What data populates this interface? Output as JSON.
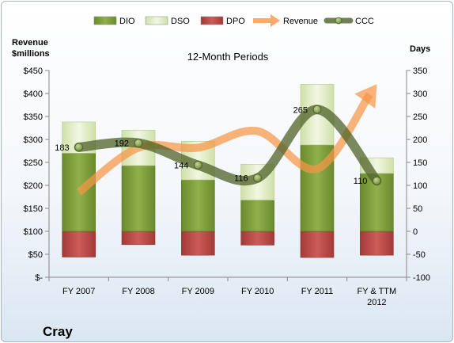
{
  "chart_data": {
    "type": "bar",
    "title": "12-Month Periods",
    "footer_title": "Cray",
    "ylabel_left": [
      "Revenue",
      "$millions"
    ],
    "ylabel_right": "Days",
    "categories": [
      [
        "FY 2007"
      ],
      [
        "FY 2008"
      ],
      [
        "FY 2009"
      ],
      [
        "FY 2010"
      ],
      [
        "FY 2011"
      ],
      [
        "FY & TTM",
        "2012"
      ]
    ],
    "left_axis": {
      "ylim": [
        0,
        450
      ],
      "ticks": [
        0,
        50,
        100,
        150,
        200,
        250,
        300,
        350,
        400,
        450
      ],
      "tick_labels": [
        "$-",
        "$50",
        "$100",
        "$150",
        "$200",
        "$250",
        "$300",
        "$350",
        "$400",
        "$450"
      ]
    },
    "right_axis": {
      "ylim": [
        -100,
        350
      ],
      "ticks": [
        -100,
        -50,
        0,
        50,
        100,
        150,
        200,
        250,
        300,
        350
      ],
      "tick_labels": [
        "-100",
        "-50",
        "0",
        "50",
        "100",
        "150",
        "200",
        "250",
        "300",
        "350"
      ]
    },
    "legend": {
      "placement": "top",
      "entries": [
        {
          "name": "DIO",
          "kind": "box",
          "color": "#77933c"
        },
        {
          "name": "DSO",
          "kind": "box",
          "color": "#d7e4bd"
        },
        {
          "name": "DPO",
          "kind": "box",
          "color": "#c0504d"
        },
        {
          "name": "Revenue",
          "kind": "arrow",
          "color": "#f79646"
        },
        {
          "name": "CCC",
          "kind": "line-marker",
          "color": "#4f6228"
        }
      ]
    },
    "series": [
      {
        "name": "DIO",
        "axis": "right",
        "values": [
          170,
          143,
          112,
          68,
          188,
          126
        ],
        "color": "#77933c"
      },
      {
        "name": "DSO",
        "axis": "right",
        "values": [
          68,
          77,
          84,
          78,
          132,
          34
        ],
        "color": "#d7e4bd"
      },
      {
        "name": "DPO",
        "axis": "right",
        "values": [
          -56,
          -29,
          -52,
          -30,
          -57,
          -52
        ],
        "color": "#c0504d"
      },
      {
        "name": "Revenue",
        "axis": "left",
        "values": [
          185,
          282,
          282,
          318,
          236,
          420
        ],
        "color": "#f79646"
      },
      {
        "name": "CCC",
        "axis": "right",
        "values": [
          183,
          192,
          144,
          116,
          265,
          110
        ],
        "color": "#4f6228"
      }
    ],
    "data_labels": [
      "183",
      "192",
      "144",
      "116",
      "265",
      "110"
    ],
    "grid": false
  }
}
